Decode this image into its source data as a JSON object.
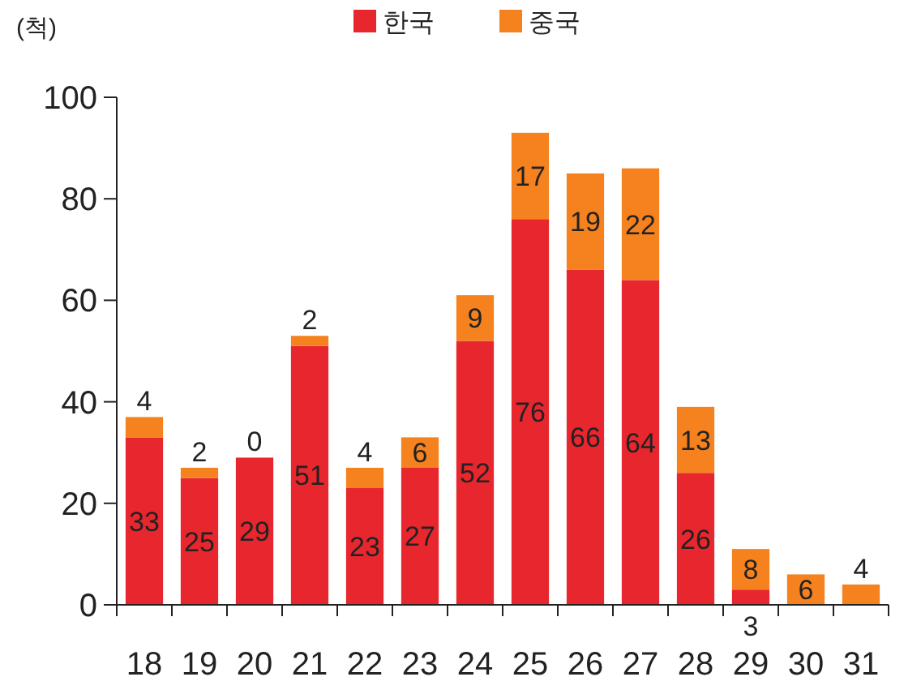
{
  "chart_data": {
    "type": "bar",
    "stacked": true,
    "ylabel": "(척)",
    "categories": [
      "18",
      "19",
      "20",
      "21",
      "22",
      "23",
      "24",
      "25",
      "26",
      "27",
      "28",
      "29",
      "30",
      "31"
    ],
    "series": [
      {
        "name": "한국",
        "color": "#e8262e",
        "values": [
          33,
          25,
          29,
          51,
          23,
          27,
          52,
          76,
          66,
          64,
          26,
          3,
          0,
          0
        ],
        "value_labels": [
          "33",
          "25",
          "29",
          "51",
          "23",
          "27",
          "52",
          "76",
          "66",
          "64",
          "26",
          "3",
          null,
          null
        ]
      },
      {
        "name": "중국",
        "color": "#f5821f",
        "values": [
          4,
          2,
          0,
          2,
          4,
          6,
          9,
          17,
          19,
          22,
          13,
          8,
          6,
          4
        ],
        "value_labels": [
          "4",
          "2",
          "0",
          "2",
          "4",
          "6",
          "9",
          "17",
          "19",
          "22",
          "13",
          "8",
          "6",
          "4"
        ]
      }
    ],
    "ylim": [
      0,
      100
    ],
    "yticks": [
      0,
      20,
      40,
      60,
      80,
      100
    ],
    "grid": false,
    "legend": "top"
  }
}
